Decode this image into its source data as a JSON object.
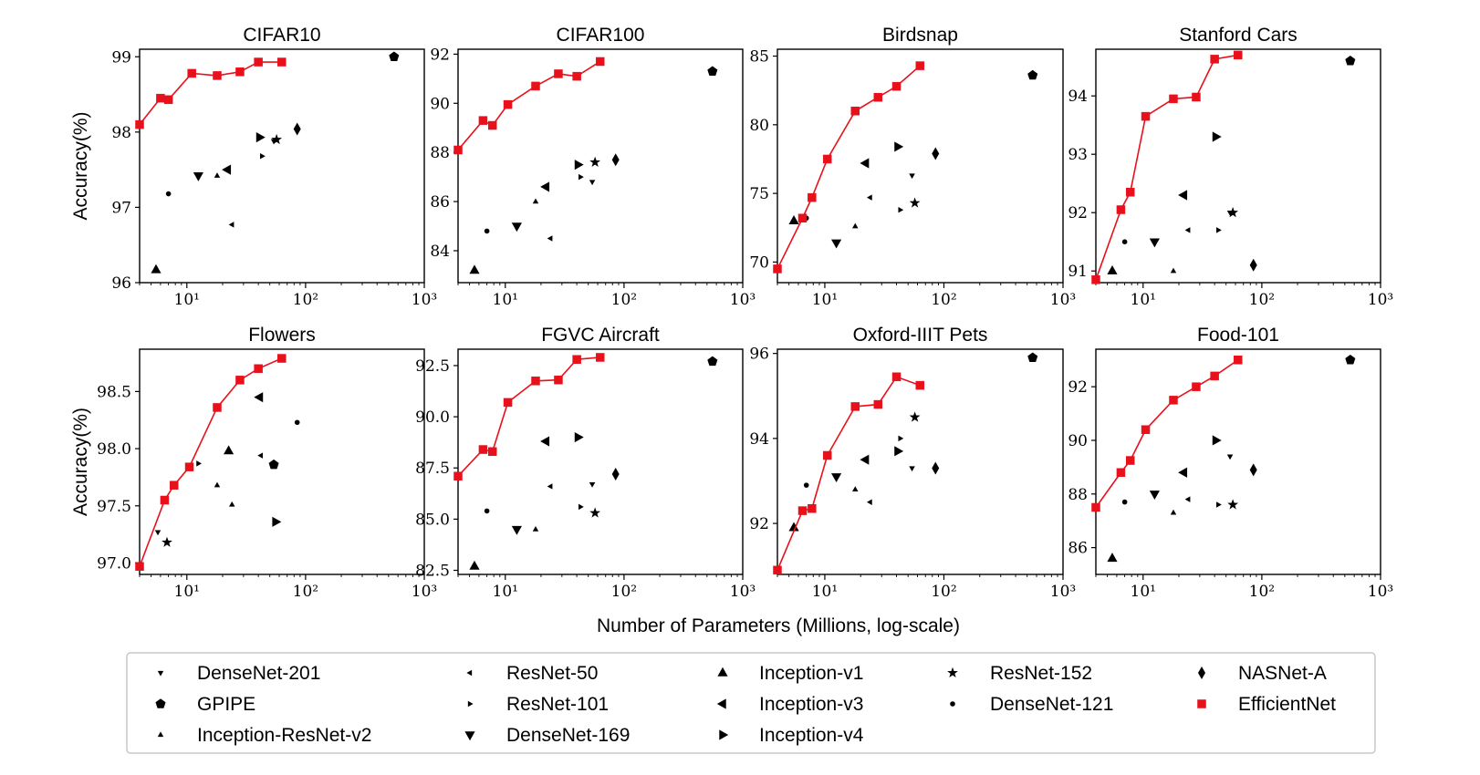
{
  "figure": {
    "xlabel": "Number of Parameters (Millions, log-scale)",
    "ylabel": "Accuracy(%)"
  },
  "colors": {
    "efficientnet": "#e8111b",
    "markers": "#000000",
    "axes": "#000000",
    "legend_border": "#c8c8c8"
  },
  "legend": [
    {
      "name": "DenseNet-201",
      "marker": "tri_down"
    },
    {
      "name": "GPIPE",
      "marker": "pentagon"
    },
    {
      "name": "Inception-ResNet-v2",
      "marker": "tri_up"
    },
    {
      "name": "ResNet-50",
      "marker": "tri_left"
    },
    {
      "name": "ResNet-101",
      "marker": "tri_right"
    },
    {
      "name": "DenseNet-169",
      "marker": "triangle_down"
    },
    {
      "name": "Inception-v1",
      "marker": "triangle_up"
    },
    {
      "name": "Inception-v3",
      "marker": "triangle_left"
    },
    {
      "name": "Inception-v4",
      "marker": "triangle_right"
    },
    {
      "name": "ResNet-152",
      "marker": "star"
    },
    {
      "name": "DenseNet-121",
      "marker": "point"
    },
    {
      "name": "NASNet-A",
      "marker": "thin_diamond"
    },
    {
      "name": "EfficientNet",
      "marker": "square"
    }
  ],
  "chart_data": [
    {
      "title": "CIFAR10",
      "type": "line+scatter",
      "xscale": "log",
      "xlim": [
        4,
        1000
      ],
      "ylim": [
        96,
        99.1
      ],
      "yticks": [
        96,
        97,
        98,
        99
      ],
      "ytick_labels": [
        "96",
        "97",
        "98",
        "99"
      ],
      "xtick_labels": [
        "10¹",
        "10²",
        "10³"
      ],
      "show_ylabel": true,
      "efficientnet": {
        "x": [
          4,
          6,
          7,
          11,
          18,
          28,
          40,
          63
        ],
        "y": [
          98.1,
          98.45,
          98.43,
          98.78,
          98.75,
          98.8,
          98.93,
          98.93
        ]
      },
      "points": [
        {
          "model": "Inception-v1",
          "x": 5.5,
          "y": 96.17
        },
        {
          "model": "DenseNet-121",
          "x": 7,
          "y": 97.18
        },
        {
          "model": "DenseNet-169",
          "x": 12.5,
          "y": 97.42
        },
        {
          "model": "Inception-ResNet-v2",
          "x": 18,
          "y": 97.42
        },
        {
          "model": "Inception-v3",
          "x": 22,
          "y": 97.5
        },
        {
          "model": "ResNet-50",
          "x": 24,
          "y": 96.77
        },
        {
          "model": "Inception-v4",
          "x": 41,
          "y": 97.93
        },
        {
          "model": "ResNet-101",
          "x": 43,
          "y": 97.68
        },
        {
          "model": "DenseNet-201",
          "x": 54,
          "y": 97.88
        },
        {
          "model": "ResNet-152",
          "x": 57,
          "y": 97.9
        },
        {
          "model": "NASNet-A",
          "x": 85,
          "y": 98.04
        },
        {
          "model": "GPIPE",
          "x": 556,
          "y": 99.0
        }
      ]
    },
    {
      "title": "CIFAR100",
      "type": "line+scatter",
      "xscale": "log",
      "xlim": [
        4,
        1000
      ],
      "ylim": [
        82.7,
        92.2
      ],
      "yticks": [
        84,
        86,
        88,
        90,
        92
      ],
      "ytick_labels": [
        "84",
        "86",
        "88",
        "90",
        "92"
      ],
      "xtick_labels": [
        "10¹",
        "10²",
        "10³"
      ],
      "show_ylabel": false,
      "efficientnet": {
        "x": [
          4,
          6.5,
          7.8,
          10.5,
          18,
          28,
          40,
          63
        ],
        "y": [
          88.1,
          89.3,
          89.1,
          89.95,
          90.7,
          91.2,
          91.1,
          91.7
        ]
      },
      "points": [
        {
          "model": "Inception-v1",
          "x": 5.5,
          "y": 83.2
        },
        {
          "model": "DenseNet-121",
          "x": 7,
          "y": 84.8
        },
        {
          "model": "DenseNet-169",
          "x": 12.5,
          "y": 85.0
        },
        {
          "model": "Inception-ResNet-v2",
          "x": 18,
          "y": 86.0
        },
        {
          "model": "Inception-v3",
          "x": 22,
          "y": 86.6
        },
        {
          "model": "ResNet-50",
          "x": 24,
          "y": 84.5
        },
        {
          "model": "Inception-v4",
          "x": 41,
          "y": 87.5
        },
        {
          "model": "ResNet-101",
          "x": 43,
          "y": 87.0
        },
        {
          "model": "DenseNet-201",
          "x": 54,
          "y": 86.8
        },
        {
          "model": "ResNet-152",
          "x": 57,
          "y": 87.6
        },
        {
          "model": "NASNet-A",
          "x": 85,
          "y": 87.7
        },
        {
          "model": "GPIPE",
          "x": 556,
          "y": 91.3
        }
      ]
    },
    {
      "title": "Birdsnap",
      "type": "line+scatter",
      "xscale": "log",
      "xlim": [
        4,
        1000
      ],
      "ylim": [
        68.5,
        85.5
      ],
      "yticks": [
        70,
        75,
        80,
        85
      ],
      "ytick_labels": [
        "70",
        "75",
        "80",
        "85"
      ],
      "xtick_labels": [
        "10¹",
        "10²",
        "10³"
      ],
      "show_ylabel": false,
      "efficientnet": {
        "x": [
          4,
          6.5,
          7.8,
          10.5,
          18,
          28,
          40,
          63
        ],
        "y": [
          69.5,
          73.2,
          74.7,
          77.5,
          81.0,
          82.0,
          82.8,
          84.3
        ]
      },
      "points": [
        {
          "model": "Inception-v1",
          "x": 5.5,
          "y": 73.0
        },
        {
          "model": "DenseNet-121",
          "x": 7,
          "y": 73.2
        },
        {
          "model": "DenseNet-169",
          "x": 12.5,
          "y": 71.4
        },
        {
          "model": "Inception-ResNet-v2",
          "x": 18,
          "y": 72.6
        },
        {
          "model": "Inception-v3",
          "x": 22,
          "y": 77.2
        },
        {
          "model": "ResNet-50",
          "x": 24,
          "y": 74.7
        },
        {
          "model": "Inception-v4",
          "x": 41,
          "y": 78.4
        },
        {
          "model": "ResNet-101",
          "x": 43,
          "y": 73.8
        },
        {
          "model": "DenseNet-201",
          "x": 54,
          "y": 76.3
        },
        {
          "model": "ResNet-152",
          "x": 57,
          "y": 74.3
        },
        {
          "model": "NASNet-A",
          "x": 85,
          "y": 77.9
        },
        {
          "model": "GPIPE",
          "x": 556,
          "y": 83.6
        }
      ]
    },
    {
      "title": "Stanford Cars",
      "type": "line+scatter",
      "xscale": "log",
      "xlim": [
        4,
        1000
      ],
      "ylim": [
        90.8,
        94.8
      ],
      "yticks": [
        91,
        92,
        93,
        94
      ],
      "ytick_labels": [
        "91",
        "92",
        "93",
        "94"
      ],
      "xtick_labels": [
        "10¹",
        "10²",
        "10³"
      ],
      "show_ylabel": false,
      "efficientnet": {
        "x": [
          4,
          6.5,
          7.8,
          10.5,
          18,
          28,
          40,
          63
        ],
        "y": [
          90.85,
          92.05,
          92.35,
          93.65,
          93.95,
          93.98,
          94.63,
          94.7
        ]
      },
      "points": [
        {
          "model": "Inception-v1",
          "x": 5.5,
          "y": 91.0
        },
        {
          "model": "DenseNet-121",
          "x": 7,
          "y": 91.5
        },
        {
          "model": "DenseNet-169",
          "x": 12.5,
          "y": 91.5
        },
        {
          "model": "Inception-ResNet-v2",
          "x": 18,
          "y": 91.0
        },
        {
          "model": "Inception-v3",
          "x": 22,
          "y": 92.3
        },
        {
          "model": "ResNet-50",
          "x": 24,
          "y": 91.7
        },
        {
          "model": "Inception-v4",
          "x": 41,
          "y": 93.3
        },
        {
          "model": "ResNet-101",
          "x": 43,
          "y": 91.7
        },
        {
          "model": "DenseNet-201",
          "x": 54,
          "y": 92.0
        },
        {
          "model": "ResNet-152",
          "x": 57,
          "y": 92.0
        },
        {
          "model": "NASNet-A",
          "x": 85,
          "y": 91.1
        },
        {
          "model": "GPIPE",
          "x": 556,
          "y": 94.6
        }
      ]
    },
    {
      "title": "Flowers",
      "type": "line+scatter",
      "xscale": "log",
      "xlim": [
        4,
        1000
      ],
      "ylim": [
        96.9,
        98.87
      ],
      "yticks": [
        97.0,
        97.5,
        98.0,
        98.5
      ],
      "ytick_labels": [
        "97.0",
        "97.5",
        "98.0",
        "98.5"
      ],
      "xtick_labels": [
        "10¹",
        "10²",
        "10³"
      ],
      "show_ylabel": true,
      "efficientnet": {
        "x": [
          4,
          6.5,
          7.8,
          10.5,
          18,
          28,
          40,
          63
        ],
        "y": [
          96.97,
          97.55,
          97.68,
          97.84,
          98.36,
          98.6,
          98.7,
          98.79
        ]
      },
      "points": [
        {
          "model": "DenseNet-201",
          "x": 5.7,
          "y": 97.27
        },
        {
          "model": "ResNet-152",
          "x": 6.8,
          "y": 97.18
        },
        {
          "model": "ResNet-101",
          "x": 12.5,
          "y": 97.87
        },
        {
          "model": "Inception-ResNet-v2",
          "x": 18,
          "y": 97.68
        },
        {
          "model": "Inception-v1",
          "x": 22.5,
          "y": 97.98
        },
        {
          "model": "Inception-ResNet-v2",
          "x": 24,
          "y": 97.51
        },
        {
          "model": "Inception-v3",
          "x": 41,
          "y": 98.45
        },
        {
          "model": "ResNet-50",
          "x": 42,
          "y": 97.94
        },
        {
          "model": "GPIPE",
          "x": 54,
          "y": 97.86
        },
        {
          "model": "Inception-v4",
          "x": 56,
          "y": 97.36
        },
        {
          "model": "DenseNet-121",
          "x": 85,
          "y": 98.23
        }
      ]
    },
    {
      "title": "FGVC Aircraft",
      "type": "line+scatter",
      "xscale": "log",
      "xlim": [
        4,
        1000
      ],
      "ylim": [
        82.3,
        93.3
      ],
      "yticks": [
        82.5,
        85.0,
        87.5,
        90.0,
        92.5
      ],
      "ytick_labels": [
        "82.5",
        "85.0",
        "87.5",
        "90.0",
        "92.5"
      ],
      "xtick_labels": [
        "10¹",
        "10²",
        "10³"
      ],
      "show_ylabel": false,
      "efficientnet": {
        "x": [
          4,
          6.5,
          7.8,
          10.5,
          18,
          28,
          40,
          63
        ],
        "y": [
          87.1,
          88.4,
          88.3,
          90.7,
          91.75,
          91.8,
          92.8,
          92.9
        ]
      },
      "points": [
        {
          "model": "Inception-v1",
          "x": 5.5,
          "y": 82.7
        },
        {
          "model": "DenseNet-121",
          "x": 7,
          "y": 85.4
        },
        {
          "model": "DenseNet-169",
          "x": 12.5,
          "y": 84.5
        },
        {
          "model": "Inception-ResNet-v2",
          "x": 18,
          "y": 84.5
        },
        {
          "model": "Inception-v3",
          "x": 22,
          "y": 88.8
        },
        {
          "model": "ResNet-50",
          "x": 24,
          "y": 86.6
        },
        {
          "model": "Inception-v4",
          "x": 41,
          "y": 89.0
        },
        {
          "model": "ResNet-101",
          "x": 43,
          "y": 85.6
        },
        {
          "model": "DenseNet-201",
          "x": 54,
          "y": 86.7
        },
        {
          "model": "ResNet-152",
          "x": 57,
          "y": 85.3
        },
        {
          "model": "NASNet-A",
          "x": 85,
          "y": 87.2
        },
        {
          "model": "GPIPE",
          "x": 556,
          "y": 92.7
        }
      ]
    },
    {
      "title": "Oxford-IIIT Pets",
      "type": "line+scatter",
      "xscale": "log",
      "xlim": [
        4,
        1000
      ],
      "ylim": [
        90.8,
        96.1
      ],
      "yticks": [
        92,
        94,
        96
      ],
      "ytick_labels": [
        "92",
        "94",
        "96"
      ],
      "xtick_labels": [
        "10¹",
        "10²",
        "10³"
      ],
      "show_ylabel": false,
      "efficientnet": {
        "x": [
          4,
          6.5,
          7.8,
          10.5,
          18,
          28,
          40,
          63
        ],
        "y": [
          90.9,
          92.3,
          92.35,
          93.6,
          94.75,
          94.8,
          95.45,
          95.25
        ]
      },
      "points": [
        {
          "model": "Inception-v1",
          "x": 5.5,
          "y": 91.9
        },
        {
          "model": "DenseNet-121",
          "x": 7,
          "y": 92.9
        },
        {
          "model": "DenseNet-169",
          "x": 12.5,
          "y": 93.1
        },
        {
          "model": "Inception-ResNet-v2",
          "x": 18,
          "y": 92.8
        },
        {
          "model": "Inception-v3",
          "x": 22,
          "y": 93.5
        },
        {
          "model": "ResNet-50",
          "x": 24,
          "y": 92.5
        },
        {
          "model": "Inception-v4",
          "x": 41,
          "y": 93.7
        },
        {
          "model": "ResNet-101",
          "x": 43,
          "y": 94.0
        },
        {
          "model": "DenseNet-201",
          "x": 54,
          "y": 93.3
        },
        {
          "model": "ResNet-152",
          "x": 57,
          "y": 94.5
        },
        {
          "model": "NASNet-A",
          "x": 85,
          "y": 93.3
        },
        {
          "model": "GPIPE",
          "x": 556,
          "y": 95.9
        }
      ]
    },
    {
      "title": "Food-101",
      "type": "line+scatter",
      "xscale": "log",
      "xlim": [
        4,
        1000
      ],
      "ylim": [
        85.0,
        93.4
      ],
      "yticks": [
        86,
        88,
        90,
        92
      ],
      "ytick_labels": [
        "86",
        "88",
        "90",
        "92"
      ],
      "xtick_labels": [
        "10¹",
        "10²",
        "10³"
      ],
      "show_ylabel": false,
      "efficientnet": {
        "x": [
          4,
          6.5,
          7.8,
          10.5,
          18,
          28,
          40,
          63
        ],
        "y": [
          87.5,
          88.8,
          89.25,
          90.4,
          91.5,
          92.0,
          92.4,
          93.0
        ]
      },
      "points": [
        {
          "model": "Inception-v1",
          "x": 5.5,
          "y": 85.6
        },
        {
          "model": "DenseNet-121",
          "x": 7,
          "y": 87.7
        },
        {
          "model": "DenseNet-169",
          "x": 12.5,
          "y": 88.0
        },
        {
          "model": "Inception-ResNet-v2",
          "x": 18,
          "y": 87.3
        },
        {
          "model": "Inception-v3",
          "x": 22,
          "y": 88.8
        },
        {
          "model": "ResNet-50",
          "x": 24,
          "y": 87.8
        },
        {
          "model": "Inception-v4",
          "x": 41,
          "y": 90.0
        },
        {
          "model": "ResNet-101",
          "x": 43,
          "y": 87.6
        },
        {
          "model": "DenseNet-201",
          "x": 54,
          "y": 89.4
        },
        {
          "model": "ResNet-152",
          "x": 57,
          "y": 87.6
        },
        {
          "model": "NASNet-A",
          "x": 85,
          "y": 88.9
        },
        {
          "model": "GPIPE",
          "x": 556,
          "y": 93.0
        }
      ]
    }
  ]
}
